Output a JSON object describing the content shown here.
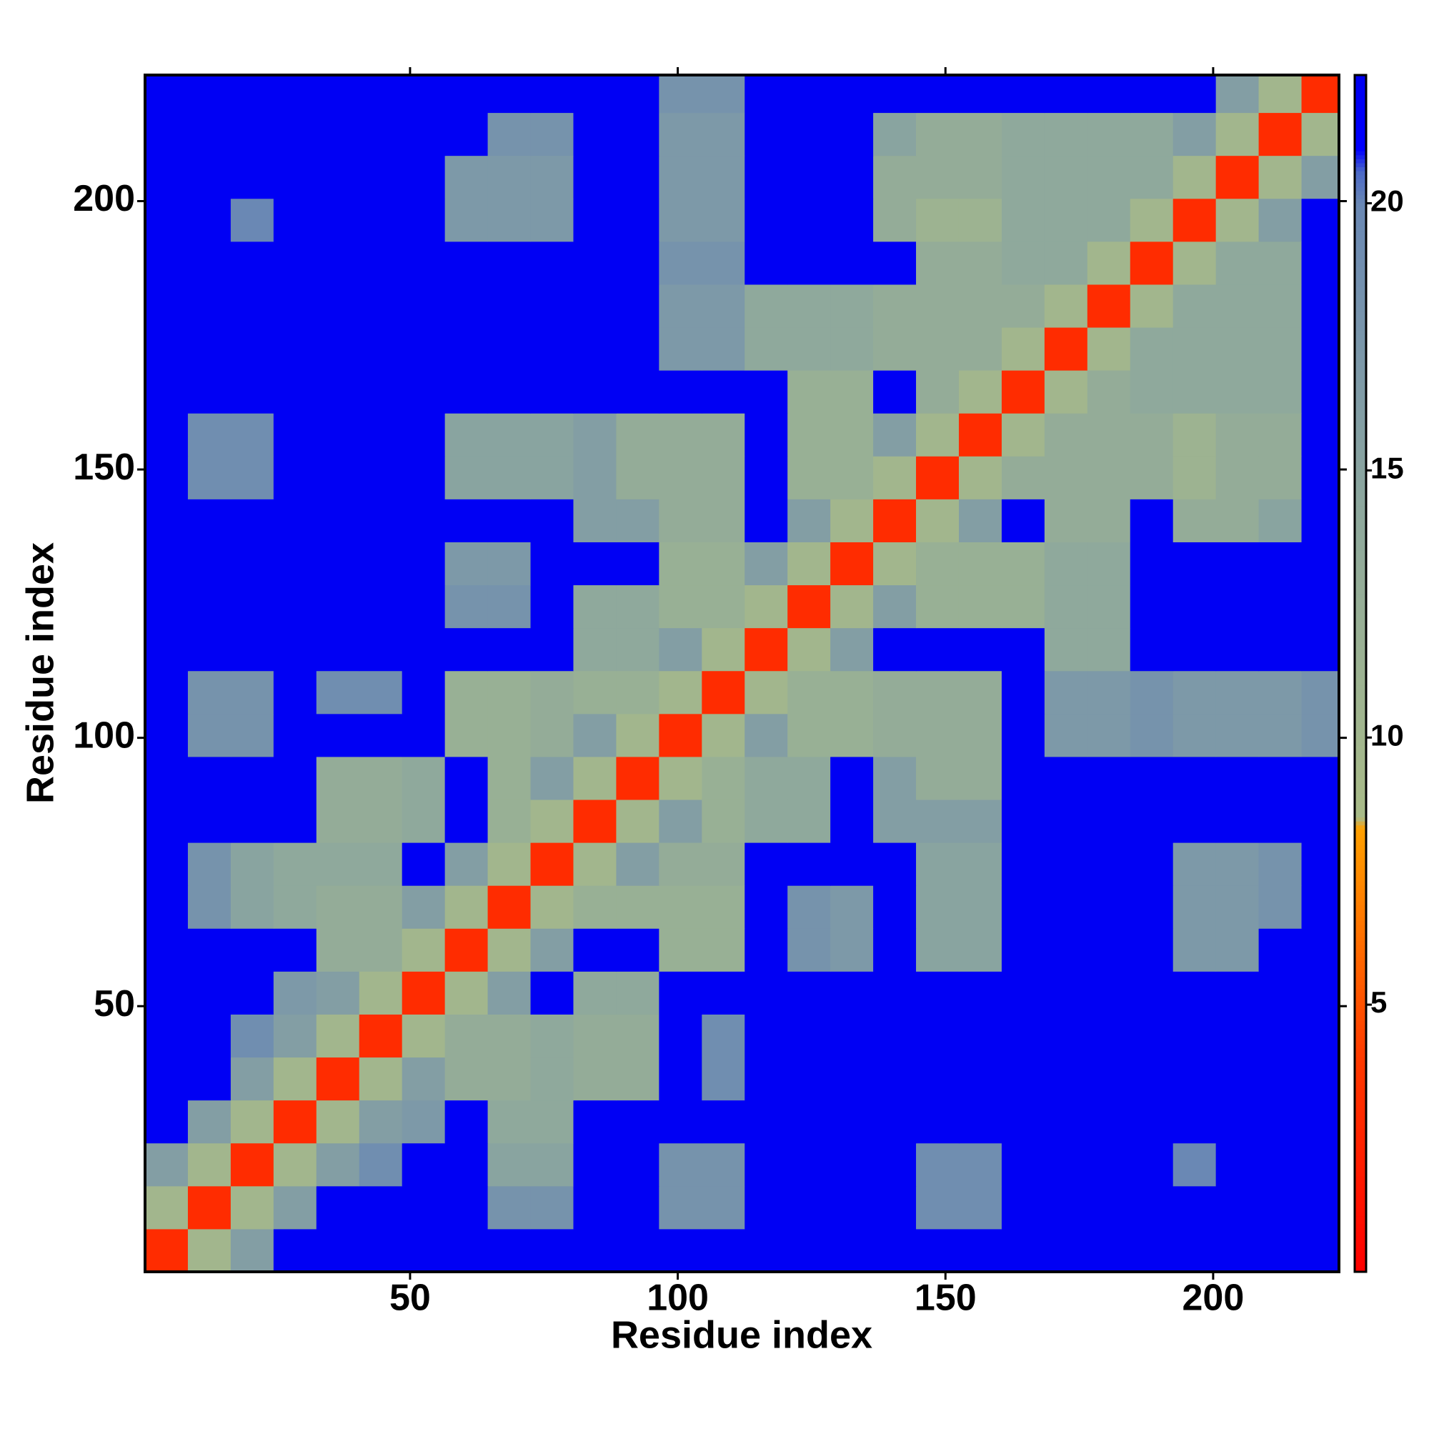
{
  "chart_data": {
    "type": "heatmap",
    "xlabel": "Residue index",
    "ylabel": "Residue index",
    "xlim": [
      0.5,
      223.5
    ],
    "ylim": [
      0.5,
      223.5
    ],
    "xticks": [
      50,
      100,
      150,
      200
    ],
    "yticks": [
      50,
      100,
      150,
      200
    ],
    "bins": [
      0.5,
      8.5,
      16.5,
      24.5,
      32.5,
      40.5,
      48.5,
      56.5,
      64.5,
      72.5,
      80.5,
      88.5,
      96.5,
      104.5,
      112.5,
      120.5,
      128.5,
      136.5,
      144.5,
      152.5,
      160.5,
      168.5,
      176.5,
      184.5,
      192.5,
      200.5,
      208.5,
      216.5,
      223.5
    ],
    "z": [
      [
        3,
        10,
        16,
        22,
        22,
        22,
        22,
        22,
        22,
        22,
        22,
        22,
        22,
        22,
        22,
        22,
        22,
        22,
        22,
        22,
        22,
        22,
        22,
        22,
        22,
        22,
        22,
        22
      ],
      [
        10,
        3,
        10,
        16,
        22,
        22,
        22,
        22,
        18,
        18,
        22,
        22,
        18,
        18,
        22,
        22,
        22,
        22,
        19,
        19,
        22,
        22,
        22,
        22,
        22,
        22,
        22,
        22
      ],
      [
        16,
        10,
        3,
        10,
        16,
        19,
        22,
        22,
        15,
        15,
        22,
        22,
        18,
        18,
        22,
        22,
        22,
        22,
        19,
        19,
        22,
        22,
        22,
        22,
        20,
        22,
        22,
        22
      ],
      [
        22,
        16,
        10,
        3,
        10,
        16,
        17,
        22,
        14,
        14,
        22,
        22,
        22,
        22,
        22,
        22,
        22,
        22,
        22,
        22,
        22,
        22,
        22,
        22,
        22,
        22,
        22,
        22
      ],
      [
        22,
        22,
        16,
        10,
        3,
        10,
        16,
        13,
        13,
        14,
        13,
        13,
        22,
        19,
        22,
        22,
        22,
        22,
        22,
        22,
        22,
        22,
        22,
        22,
        22,
        22,
        22,
        22
      ],
      [
        22,
        22,
        19,
        16,
        10,
        3,
        10,
        13,
        13,
        14,
        13,
        13,
        22,
        19,
        22,
        22,
        22,
        22,
        22,
        22,
        22,
        22,
        22,
        22,
        22,
        22,
        22,
        22
      ],
      [
        22,
        22,
        22,
        17,
        16,
        10,
        3,
        10,
        16,
        22,
        14,
        14,
        22,
        22,
        22,
        22,
        22,
        22,
        22,
        22,
        22,
        22,
        22,
        22,
        22,
        22,
        22,
        22
      ],
      [
        22,
        22,
        22,
        22,
        13,
        13,
        10,
        3,
        10,
        16,
        22,
        22,
        12,
        12,
        22,
        18,
        17,
        22,
        15,
        15,
        22,
        22,
        22,
        22,
        17,
        17,
        22,
        22
      ],
      [
        22,
        18,
        15,
        14,
        13,
        13,
        16,
        10,
        3,
        10,
        12,
        12,
        12,
        12,
        22,
        18,
        17,
        22,
        15,
        15,
        22,
        22,
        22,
        22,
        17,
        17,
        18,
        22
      ],
      [
        22,
        18,
        15,
        14,
        14,
        14,
        22,
        16,
        10,
        3,
        10,
        16,
        13,
        13,
        22,
        22,
        22,
        22,
        15,
        15,
        22,
        22,
        22,
        22,
        17,
        17,
        18,
        22
      ],
      [
        22,
        22,
        22,
        22,
        13,
        13,
        14,
        22,
        12,
        10,
        3,
        10,
        16,
        12,
        14,
        14,
        22,
        16,
        16,
        16,
        22,
        22,
        22,
        22,
        22,
        22,
        22,
        22
      ],
      [
        22,
        22,
        22,
        22,
        13,
        13,
        14,
        22,
        12,
        16,
        10,
        3,
        10,
        12,
        14,
        14,
        22,
        16,
        13,
        13,
        22,
        22,
        22,
        22,
        22,
        22,
        22,
        22
      ],
      [
        22,
        18,
        18,
        22,
        22,
        22,
        22,
        12,
        12,
        13,
        16,
        10,
        3,
        10,
        16,
        12,
        12,
        13,
        13,
        13,
        22,
        17,
        17,
        18,
        17,
        17,
        17,
        18
      ],
      [
        22,
        18,
        18,
        22,
        19,
        19,
        22,
        12,
        12,
        13,
        12,
        12,
        10,
        3,
        10,
        12,
        12,
        13,
        13,
        13,
        22,
        17,
        17,
        18,
        17,
        17,
        17,
        18
      ],
      [
        22,
        22,
        22,
        22,
        22,
        22,
        22,
        22,
        22,
        22,
        14,
        14,
        16,
        10,
        3,
        10,
        16,
        22,
        22,
        22,
        22,
        14,
        14,
        22,
        22,
        22,
        22,
        22
      ],
      [
        22,
        22,
        22,
        22,
        22,
        22,
        22,
        18,
        18,
        22,
        14,
        14,
        12,
        12,
        10,
        3,
        10,
        16,
        12,
        12,
        12,
        14,
        14,
        22,
        22,
        22,
        22,
        22
      ],
      [
        22,
        22,
        22,
        22,
        22,
        22,
        22,
        17,
        17,
        22,
        22,
        22,
        12,
        12,
        16,
        10,
        3,
        10,
        12,
        12,
        12,
        14,
        14,
        22,
        22,
        22,
        22,
        22
      ],
      [
        22,
        22,
        22,
        22,
        22,
        22,
        22,
        22,
        22,
        22,
        16,
        16,
        13,
        13,
        22,
        16,
        10,
        3,
        10,
        16,
        22,
        13,
        13,
        22,
        13,
        13,
        15,
        22
      ],
      [
        22,
        19,
        19,
        22,
        22,
        22,
        22,
        15,
        15,
        15,
        16,
        13,
        13,
        13,
        22,
        12,
        12,
        10,
        3,
        10,
        13,
        13,
        13,
        13,
        11,
        13,
        13,
        22
      ],
      [
        22,
        19,
        19,
        22,
        22,
        22,
        22,
        15,
        15,
        15,
        16,
        13,
        13,
        13,
        22,
        12,
        12,
        16,
        10,
        3,
        10,
        13,
        13,
        13,
        11,
        13,
        13,
        22
      ],
      [
        22,
        22,
        22,
        22,
        22,
        22,
        22,
        22,
        22,
        22,
        22,
        22,
        22,
        22,
        22,
        12,
        12,
        22,
        13,
        10,
        3,
        10,
        13,
        14,
        14,
        14,
        14,
        22
      ],
      [
        22,
        22,
        22,
        22,
        22,
        22,
        22,
        22,
        22,
        22,
        22,
        22,
        17,
        17,
        14,
        14,
        14,
        13,
        13,
        13,
        10,
        3,
        10,
        14,
        14,
        14,
        14,
        22
      ],
      [
        22,
        22,
        22,
        22,
        22,
        22,
        22,
        22,
        22,
        22,
        22,
        22,
        17,
        17,
        14,
        14,
        14,
        13,
        13,
        13,
        13,
        10,
        3,
        10,
        14,
        14,
        14,
        22
      ],
      [
        22,
        22,
        22,
        22,
        22,
        22,
        22,
        22,
        22,
        22,
        22,
        22,
        18,
        18,
        22,
        22,
        22,
        22,
        13,
        13,
        14,
        14,
        10,
        3,
        10,
        14,
        14,
        22
      ],
      [
        22,
        22,
        20,
        22,
        22,
        22,
        22,
        17,
        17,
        17,
        22,
        22,
        17,
        17,
        22,
        22,
        22,
        13,
        11,
        11,
        14,
        14,
        14,
        10,
        3,
        10,
        16,
        22
      ],
      [
        22,
        22,
        22,
        22,
        22,
        22,
        22,
        17,
        17,
        17,
        22,
        22,
        17,
        17,
        22,
        22,
        22,
        13,
        13,
        13,
        14,
        14,
        14,
        14,
        10,
        3,
        10,
        16
      ],
      [
        22,
        22,
        22,
        22,
        22,
        22,
        22,
        22,
        18,
        18,
        22,
        22,
        17,
        17,
        22,
        22,
        22,
        15,
        13,
        13,
        14,
        14,
        14,
        14,
        16,
        10,
        3,
        10
      ],
      [
        22,
        22,
        22,
        22,
        22,
        22,
        22,
        22,
        22,
        22,
        22,
        22,
        18,
        18,
        22,
        22,
        22,
        22,
        22,
        22,
        22,
        22,
        22,
        22,
        22,
        16,
        10,
        3
      ]
    ],
    "colorscale": [
      {
        "value": 0,
        "color": "#ff0000"
      },
      {
        "value": 4,
        "color": "#ff3a00"
      },
      {
        "value": 8.3,
        "color": "#ffa000"
      },
      {
        "value": 8.5,
        "color": "#a9bb88"
      },
      {
        "value": 14,
        "color": "#8fa99c"
      },
      {
        "value": 20,
        "color": "#6a88b4"
      },
      {
        "value": 20.6,
        "color": "#4a68c8"
      },
      {
        "value": 21,
        "color": "#0000ff"
      },
      {
        "value": 22.4,
        "color": "#0000f0"
      }
    ],
    "colorbar": {
      "zlim": [
        0,
        22.4
      ],
      "ticks": [
        5,
        10,
        15,
        20
      ]
    }
  }
}
